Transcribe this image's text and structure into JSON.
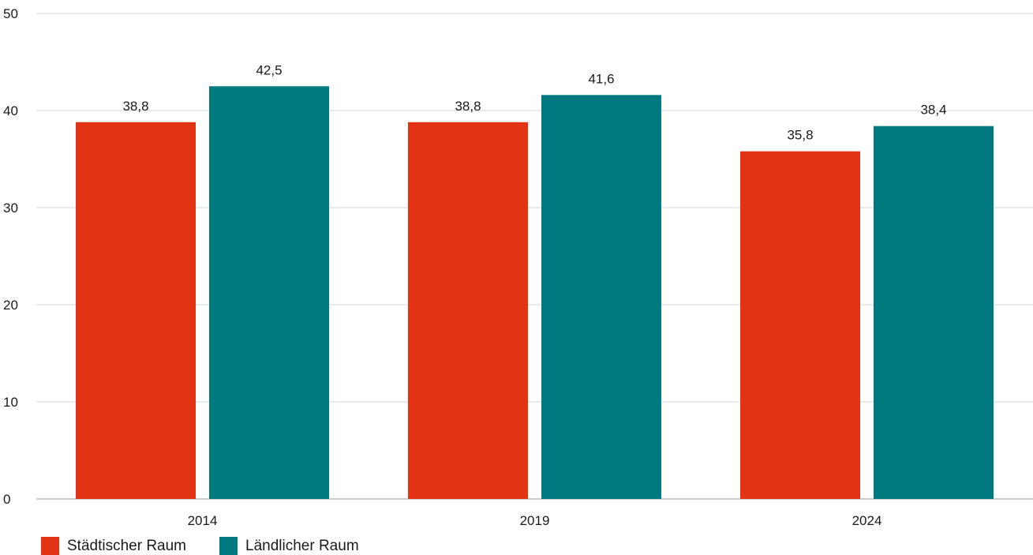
{
  "chart_data": {
    "type": "bar",
    "categories": [
      "2014",
      "2019",
      "2024"
    ],
    "series": [
      {
        "name": "Städtischer Raum",
        "values": [
          38.8,
          38.8,
          35.8
        ],
        "labels": [
          "38,8",
          "38,8",
          "35,8"
        ],
        "color": "#e23414"
      },
      {
        "name": "Ländlicher Raum",
        "values": [
          42.5,
          41.6,
          38.4
        ],
        "labels": [
          "42,5",
          "41,6",
          "38,4"
        ],
        "color": "#00797f"
      }
    ],
    "yticks": [
      "0",
      "10",
      "20",
      "30",
      "40",
      "50"
    ],
    "ylim": [
      0,
      50
    ],
    "grid": true,
    "legend_position": "bottom-left"
  }
}
